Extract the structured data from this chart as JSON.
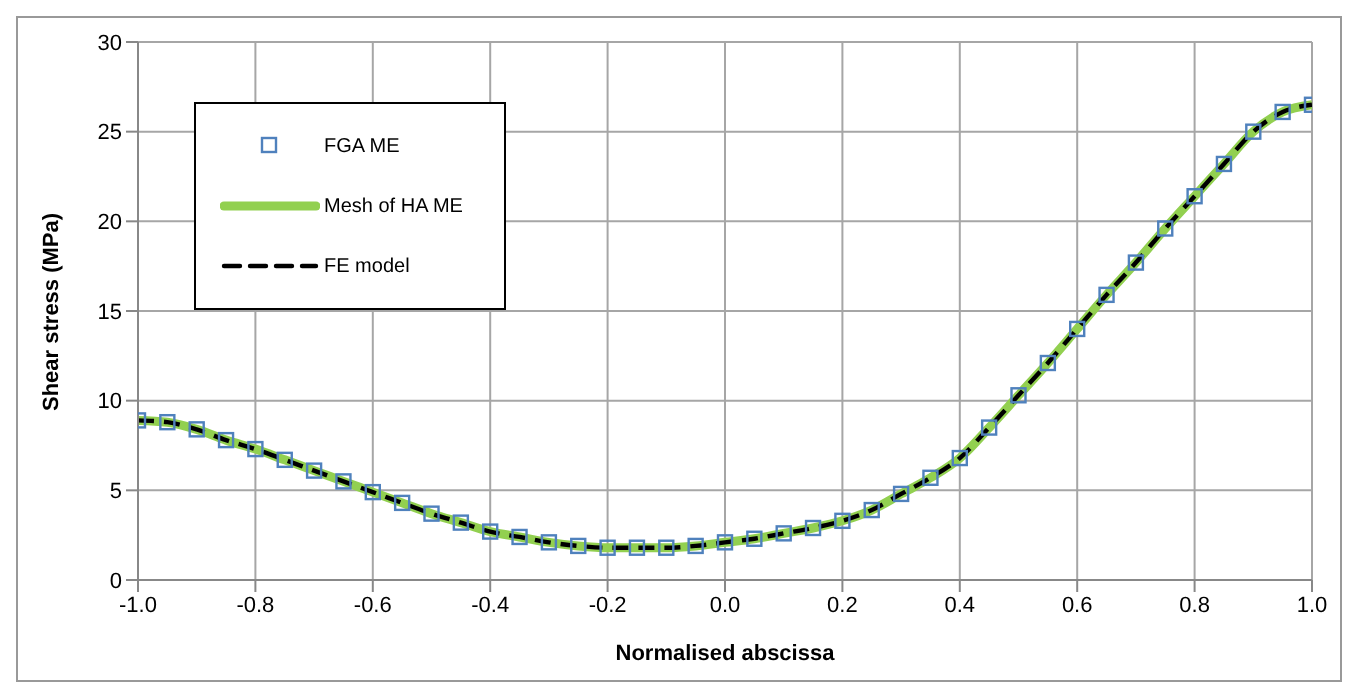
{
  "chart_data": {
    "type": "line",
    "xlabel": "Normalised abscissa",
    "ylabel": "Shear stress (MPa)",
    "x": [
      -1.0,
      -0.95,
      -0.9,
      -0.85,
      -0.8,
      -0.75,
      -0.7,
      -0.65,
      -0.6,
      -0.55,
      -0.5,
      -0.45,
      -0.4,
      -0.35,
      -0.3,
      -0.25,
      -0.2,
      -0.15,
      -0.1,
      -0.05,
      0.0,
      0.05,
      0.1,
      0.15,
      0.2,
      0.25,
      0.3,
      0.35,
      0.4,
      0.45,
      0.5,
      0.55,
      0.6,
      0.65,
      0.7,
      0.75,
      0.8,
      0.85,
      0.9,
      0.95,
      1.0
    ],
    "series": [
      {
        "name": "FGA ME",
        "type": "scatter",
        "marker": "square",
        "color": "#4f81bd",
        "values": [
          8.9,
          8.8,
          8.4,
          7.8,
          7.3,
          6.7,
          6.1,
          5.5,
          4.9,
          4.3,
          3.7,
          3.2,
          2.7,
          2.4,
          2.1,
          1.9,
          1.8,
          1.8,
          1.8,
          1.9,
          2.1,
          2.3,
          2.6,
          2.9,
          3.3,
          3.9,
          4.8,
          5.7,
          6.8,
          8.5,
          10.3,
          12.1,
          14.0,
          15.9,
          17.7,
          19.6,
          21.4,
          23.2,
          25.0,
          26.1,
          26.5
        ]
      },
      {
        "name": "Mesh of HA ME",
        "line_style": "solid",
        "color": "#92d050",
        "values": [
          8.9,
          8.8,
          8.4,
          7.8,
          7.3,
          6.7,
          6.1,
          5.5,
          4.9,
          4.3,
          3.7,
          3.2,
          2.7,
          2.4,
          2.1,
          1.9,
          1.8,
          1.8,
          1.8,
          1.9,
          2.1,
          2.3,
          2.6,
          2.9,
          3.3,
          3.9,
          4.8,
          5.7,
          6.8,
          8.5,
          10.3,
          12.1,
          14.0,
          15.9,
          17.7,
          19.6,
          21.4,
          23.2,
          25.0,
          26.1,
          26.5
        ]
      },
      {
        "name": "FE model",
        "line_style": "dashed",
        "color": "#000000",
        "values": [
          8.9,
          8.8,
          8.4,
          7.8,
          7.3,
          6.7,
          6.1,
          5.5,
          4.9,
          4.3,
          3.7,
          3.2,
          2.7,
          2.4,
          2.1,
          1.9,
          1.8,
          1.8,
          1.8,
          1.9,
          2.1,
          2.3,
          2.6,
          2.9,
          3.3,
          3.9,
          4.8,
          5.7,
          6.8,
          8.5,
          10.3,
          12.1,
          14.0,
          15.9,
          17.7,
          19.6,
          21.4,
          23.2,
          25.0,
          26.1,
          26.5
        ]
      }
    ],
    "xlim": [
      -1.0,
      1.0
    ],
    "xticks": [
      {
        "value": -1,
        "label": "-1.0"
      },
      {
        "value": -0.8,
        "label": "-0.8"
      },
      {
        "value": -0.6,
        "label": "-0.6"
      },
      {
        "value": -0.4,
        "label": "-0.4"
      },
      {
        "value": -0.2,
        "label": "-0.2"
      },
      {
        "value": 0,
        "label": "0.0"
      },
      {
        "value": 0.2,
        "label": "0.2"
      },
      {
        "value": 0.4,
        "label": "0.4"
      },
      {
        "value": 0.6,
        "label": "0.6"
      },
      {
        "value": 0.8,
        "label": "0.8"
      },
      {
        "value": 1,
        "label": "1.0"
      }
    ],
    "ylim": [
      0,
      30
    ],
    "yticks": [
      0,
      5,
      10,
      15,
      20,
      25,
      30
    ],
    "grid": true,
    "legend": "top left"
  }
}
